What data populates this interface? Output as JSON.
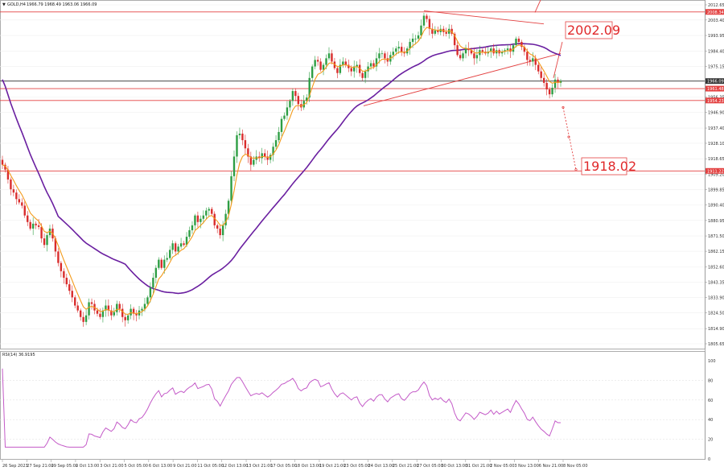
{
  "header": {
    "arrow": "▼",
    "symbol": "GOLD,H4",
    "ohlc": "1966.79 1968.49 1963.06 1966.09"
  },
  "rsi_header": "RSI(14) 36.9195",
  "colors": {
    "bull": "#2e9e44",
    "bear": "#d92c2c",
    "ma_fast": "#f39a1a",
    "ma_slow": "#6a1fa0",
    "rsi": "#c45bc8",
    "level_line": "#e34141",
    "current_line": "#333333"
  },
  "price_axis": {
    "ticks": [
      "2012.65",
      "2003.40",
      "1993.95",
      "1984.40",
      "1975.15",
      "1965.70",
      "1956.35",
      "1946.90",
      "1937.40",
      "1928.10",
      "1918.65",
      "1909.20",
      "1899.85",
      "1890.40",
      "1880.95",
      "1871.50",
      "1862.15",
      "1852.60",
      "1843.35",
      "1833.90",
      "1824.50",
      "1814.90",
      "1805.65"
    ],
    "top": 2015.6,
    "bottom": 1802.7
  },
  "level_labels": {
    "resistance": "2008.34",
    "current": "1966.09",
    "level2": "1961.48",
    "level3": "1954.23",
    "support": "1911.22"
  },
  "annotations": {
    "target_up": "2002.09",
    "target_down": "1918.02"
  },
  "rsi_axis": {
    "ticks": [
      "100",
      "80",
      "60",
      "40",
      "20",
      "0"
    ],
    "levels": [
      30,
      70
    ]
  },
  "time_axis": [
    "26 Sep 2023",
    "27 Sep 21:00",
    "29 Sep 05:00",
    "2 Oct 13:00",
    "3 Oct 21:00",
    "5 Oct 05:00",
    "6 Oct 13:00",
    "9 Oct 21:00",
    "11 Oct 05:00",
    "12 Oct 13:00",
    "13 Oct 21:00",
    "17 Oct 05:00",
    "18 Oct 13:00",
    "19 Oct 21:00",
    "23 Oct 05:00",
    "24 Oct 13:00",
    "25 Oct 21:00",
    "27 Oct 05:00",
    "30 Oct 13:00",
    "31 Oct 21:00",
    "2 Nov 05:00",
    "3 Nov 13:00",
    "6 Nov 21:00",
    "8 Nov 05:00"
  ],
  "chart_data": {
    "type": "candlestick",
    "title": "GOLD,H4",
    "ylim": [
      1802.7,
      2015.6
    ],
    "close_path": [
      1915.0,
      1912.0,
      1906.0,
      1900.0,
      1898.0,
      1894.0,
      1892.0,
      1890.0,
      1884.0,
      1880.0,
      1876.0,
      1879.0,
      1878.0,
      1877.0,
      1870.0,
      1866.0,
      1872.0,
      1876.0,
      1870.0,
      1862.0,
      1855.0,
      1850.0,
      1846.0,
      1842.0,
      1838.0,
      1834.0,
      1829.0,
      1826.0,
      1822.0,
      1819.0,
      1823.0,
      1831.0,
      1830.0,
      1826.0,
      1824.0,
      1822.0,
      1826.0,
      1829.0,
      1826.0,
      1823.0,
      1825.0,
      1830.0,
      1827.0,
      1822.0,
      1820.0,
      1823.0,
      1827.0,
      1824.0,
      1823.0,
      1826.0,
      1827.0,
      1830.0,
      1834.0,
      1840.0,
      1846.0,
      1852.0,
      1857.0,
      1852.0,
      1857.0,
      1858.0,
      1863.0,
      1867.0,
      1862.0,
      1865.0,
      1867.0,
      1866.0,
      1871.0,
      1875.0,
      1878.0,
      1884.0,
      1880.0,
      1882.0,
      1884.0,
      1887.0,
      1888.0,
      1885.0,
      1878.0,
      1876.0,
      1872.0,
      1878.0,
      1885.0,
      1893.0,
      1908.0,
      1920.0,
      1933.0,
      1934.0,
      1930.0,
      1925.0,
      1920.0,
      1915.0,
      1918.0,
      1920.0,
      1919.0,
      1922.0,
      1920.0,
      1918.0,
      1921.0,
      1926.0,
      1930.0,
      1935.0,
      1943.0,
      1945.0,
      1950.0,
      1954.0,
      1960.0,
      1957.0,
      1952.0,
      1950.0,
      1954.0,
      1956.0,
      1968.0,
      1975.0,
      1979.0,
      1978.0,
      1973.0,
      1976.0,
      1980.0,
      1983.0,
      1978.0,
      1974.0,
      1971.0,
      1976.0,
      1978.0,
      1976.0,
      1974.0,
      1972.0,
      1975.0,
      1976.0,
      1971.0,
      1968.0,
      1972.0,
      1975.0,
      1977.0,
      1975.0,
      1980.0,
      1983.0,
      1983.0,
      1980.0,
      1978.0,
      1982.0,
      1984.0,
      1986.0,
      1987.0,
      1984.0,
      1983.0,
      1986.0,
      1990.0,
      1992.0,
      1992.0,
      1994.0,
      2000.0,
      2006.0,
      2004.0,
      1998.0,
      1995.0,
      1997.0,
      1996.0,
      1998.0,
      1996.0,
      1995.0,
      1998.0,
      1995.0,
      1988.0,
      1982.0,
      1980.0,
      1983.0,
      1986.0,
      1985.0,
      1983.0,
      1980.0,
      1982.0,
      1985.0,
      1984.0,
      1983.0,
      1984.0,
      1986.0,
      1983.0,
      1985.0,
      1983.0,
      1984.0,
      1985.0,
      1986.0,
      1984.0,
      1988.0,
      1992.0,
      1990.0,
      1987.0,
      1984.0,
      1979.0,
      1978.0,
      1980.0,
      1976.0,
      1972.0,
      1968.0,
      1965.0,
      1961.0,
      1958.0,
      1962.0,
      1967.0,
      1965.0,
      1966.09
    ],
    "close": 1966.09,
    "ma_fast_period_label": "",
    "rsi_value": 36.9195,
    "horizontal_levels": [
      2008.34,
      1966.09,
      1961.48,
      1954.23,
      1911.22
    ],
    "targets": [
      2002.09,
      1918.02
    ]
  }
}
